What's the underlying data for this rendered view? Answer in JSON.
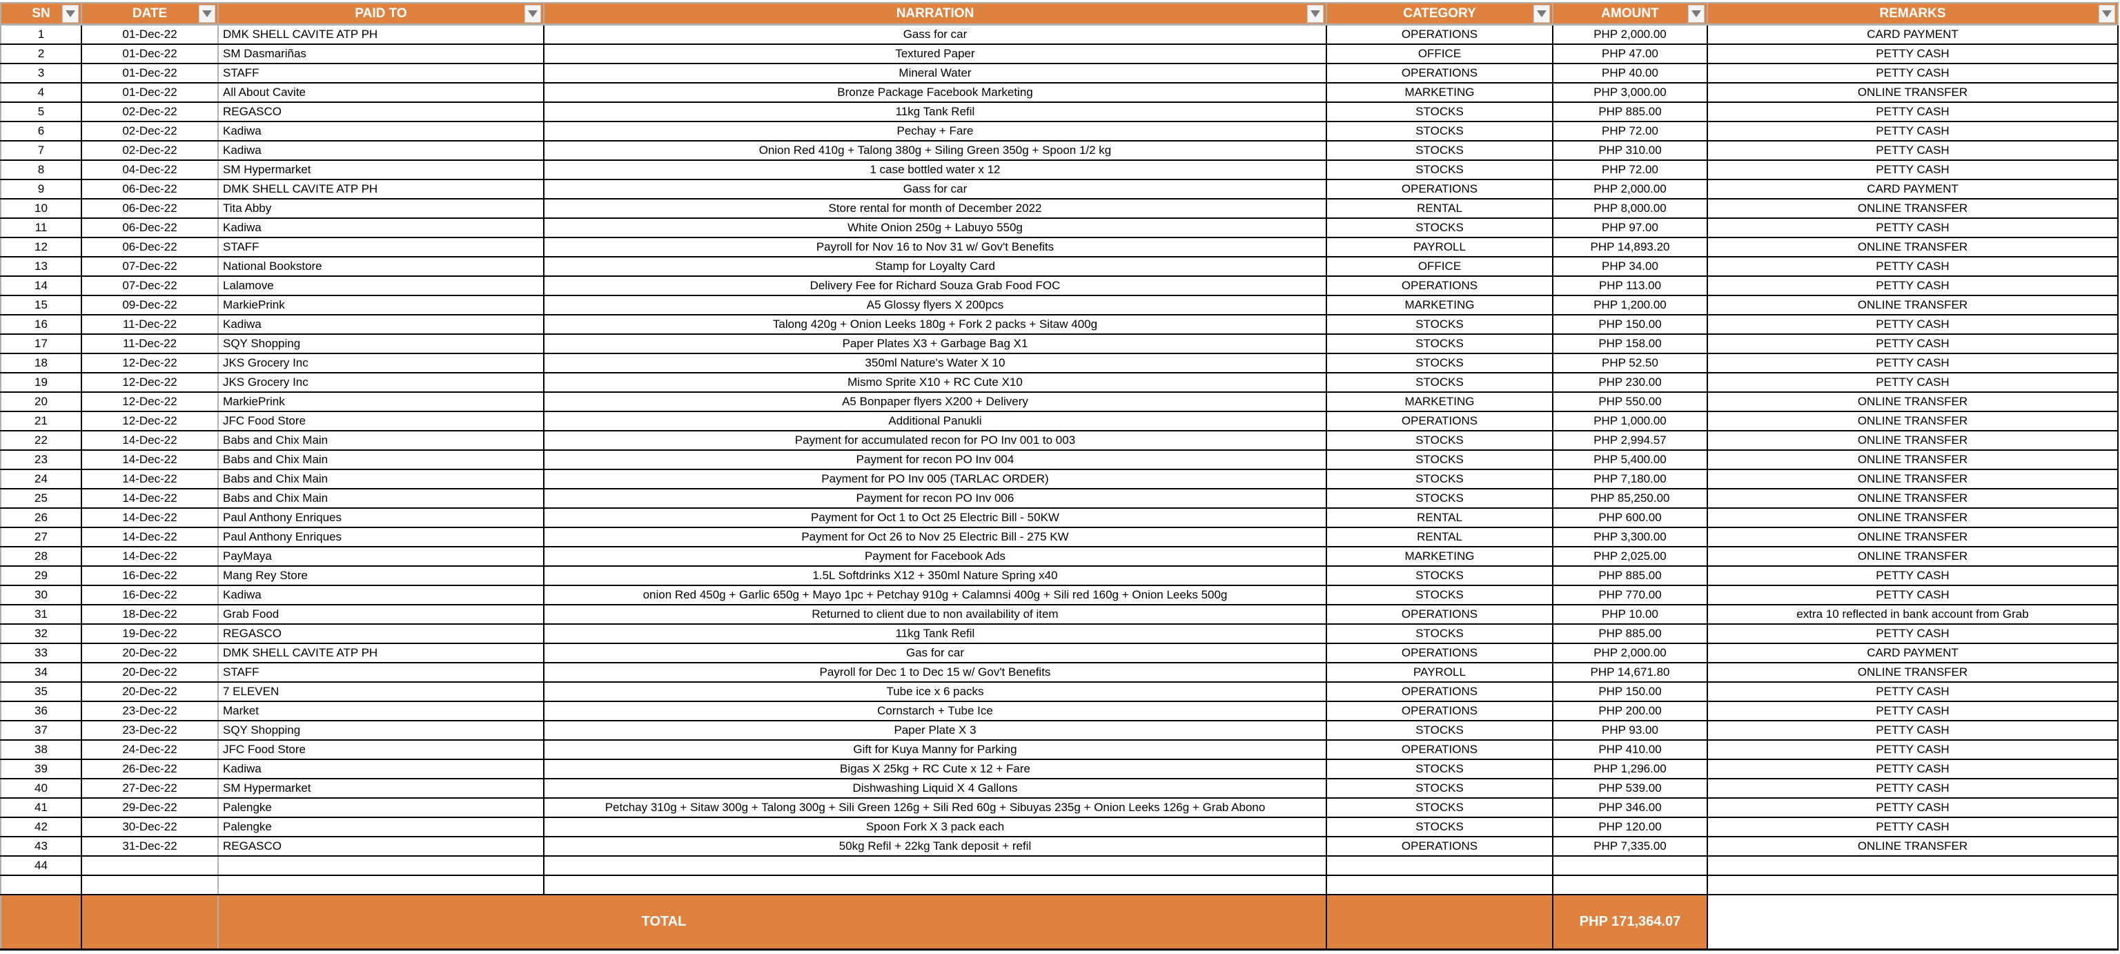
{
  "colors": {
    "header_bg": "#E0823F",
    "header_text": "#FFFFFF"
  },
  "headers": [
    "SN",
    "DATE",
    "PAID TO",
    "NARRATION",
    "CATEGORY",
    "AMOUNT",
    "REMARKS"
  ],
  "header_icon": "dropdown-filter-icon",
  "rows": [
    {
      "sn": "1",
      "date": "01-Dec-22",
      "paid_to": "DMK SHELL CAVITE ATP PH",
      "narration": "Gass for car",
      "category": "OPERATIONS",
      "amount": "PHP 2,000.00",
      "remarks": "CARD PAYMENT"
    },
    {
      "sn": "2",
      "date": "01-Dec-22",
      "paid_to": "SM Dasmariñas",
      "narration": "Textured Paper",
      "category": "OFFICE",
      "amount": "PHP 47.00",
      "remarks": "PETTY CASH"
    },
    {
      "sn": "3",
      "date": "01-Dec-22",
      "paid_to": "STAFF",
      "narration": "Mineral Water",
      "category": "OPERATIONS",
      "amount": "PHP 40.00",
      "remarks": "PETTY CASH"
    },
    {
      "sn": "4",
      "date": "01-Dec-22",
      "paid_to": "All About Cavite",
      "narration": "Bronze Package Facebook Marketing",
      "category": "MARKETING",
      "amount": "PHP 3,000.00",
      "remarks": "ONLINE TRANSFER"
    },
    {
      "sn": "5",
      "date": "02-Dec-22",
      "paid_to": "REGASCO",
      "narration": "11kg Tank Refil",
      "category": "STOCKS",
      "amount": "PHP 885.00",
      "remarks": "PETTY CASH"
    },
    {
      "sn": "6",
      "date": "02-Dec-22",
      "paid_to": "Kadiwa",
      "narration": "Pechay + Fare",
      "category": "STOCKS",
      "amount": "PHP 72.00",
      "remarks": "PETTY CASH"
    },
    {
      "sn": "7",
      "date": "02-Dec-22",
      "paid_to": "Kadiwa",
      "narration": "Onion Red 410g + Talong 380g + Siling Green 350g + Spoon 1/2 kg",
      "category": "STOCKS",
      "amount": "PHP 310.00",
      "remarks": "PETTY CASH"
    },
    {
      "sn": "8",
      "date": "04-Dec-22",
      "paid_to": "SM Hypermarket",
      "narration": "1 case bottled water x 12",
      "category": "STOCKS",
      "amount": "PHP 72.00",
      "remarks": "PETTY CASH"
    },
    {
      "sn": "9",
      "date": "06-Dec-22",
      "paid_to": "DMK SHELL CAVITE ATP PH",
      "narration": "Gass for car",
      "category": "OPERATIONS",
      "amount": "PHP 2,000.00",
      "remarks": "CARD PAYMENT"
    },
    {
      "sn": "10",
      "date": "06-Dec-22",
      "paid_to": "Tita Abby",
      "narration": "Store rental for month of December 2022",
      "category": "RENTAL",
      "amount": "PHP 8,000.00",
      "remarks": "ONLINE TRANSFER"
    },
    {
      "sn": "11",
      "date": "06-Dec-22",
      "paid_to": "Kadiwa",
      "narration": "White Onion 250g + Labuyo 550g",
      "category": "STOCKS",
      "amount": "PHP 97.00",
      "remarks": "PETTY CASH"
    },
    {
      "sn": "12",
      "date": "06-Dec-22",
      "paid_to": "STAFF",
      "narration": "Payroll for Nov 16 to Nov 31 w/ Gov't Benefits",
      "category": "PAYROLL",
      "amount": "PHP 14,893.20",
      "remarks": "ONLINE TRANSFER"
    },
    {
      "sn": "13",
      "date": "07-Dec-22",
      "paid_to": "National Bookstore",
      "narration": "Stamp for Loyalty Card",
      "category": "OFFICE",
      "amount": "PHP 34.00",
      "remarks": "PETTY CASH"
    },
    {
      "sn": "14",
      "date": "07-Dec-22",
      "paid_to": "Lalamove",
      "narration": "Delivery Fee for Richard Souza Grab Food FOC",
      "category": "OPERATIONS",
      "amount": "PHP 113.00",
      "remarks": "PETTY CASH"
    },
    {
      "sn": "15",
      "date": "09-Dec-22",
      "paid_to": "MarkiePrink",
      "narration": "A5 Glossy flyers X 200pcs",
      "category": "MARKETING",
      "amount": "PHP 1,200.00",
      "remarks": "ONLINE TRANSFER"
    },
    {
      "sn": "16",
      "date": "11-Dec-22",
      "paid_to": "Kadiwa",
      "narration": "Talong 420g + Onion Leeks 180g + Fork 2 packs + Sitaw 400g",
      "category": "STOCKS",
      "amount": "PHP 150.00",
      "remarks": "PETTY CASH"
    },
    {
      "sn": "17",
      "date": "11-Dec-22",
      "paid_to": "SQY Shopping",
      "narration": "Paper Plates X3 + Garbage Bag X1",
      "category": "STOCKS",
      "amount": "PHP 158.00",
      "remarks": "PETTY CASH"
    },
    {
      "sn": "18",
      "date": "12-Dec-22",
      "paid_to": "JKS Grocery Inc",
      "narration": "350ml Nature's Water X 10",
      "category": "STOCKS",
      "amount": "PHP 52.50",
      "remarks": "PETTY CASH"
    },
    {
      "sn": "19",
      "date": "12-Dec-22",
      "paid_to": "JKS Grocery Inc",
      "narration": "Mismo Sprite X10 + RC Cute X10",
      "category": "STOCKS",
      "amount": "PHP 230.00",
      "remarks": "PETTY CASH"
    },
    {
      "sn": "20",
      "date": "12-Dec-22",
      "paid_to": "MarkiePrink",
      "narration": "A5 Bonpaper flyers X200 + Delivery",
      "category": "MARKETING",
      "amount": "PHP 550.00",
      "remarks": "ONLINE TRANSFER"
    },
    {
      "sn": "21",
      "date": "12-Dec-22",
      "paid_to": "JFC Food Store",
      "narration": "Additional Panukli",
      "category": "OPERATIONS",
      "amount": "PHP 1,000.00",
      "remarks": "ONLINE TRANSFER"
    },
    {
      "sn": "22",
      "date": "14-Dec-22",
      "paid_to": "Babs and Chix Main",
      "narration": "Payment for accumulated recon for PO Inv 001 to 003",
      "category": "STOCKS",
      "amount": "PHP 2,994.57",
      "remarks": "ONLINE TRANSFER"
    },
    {
      "sn": "23",
      "date": "14-Dec-22",
      "paid_to": "Babs and Chix Main",
      "narration": "Payment for recon PO Inv 004",
      "category": "STOCKS",
      "amount": "PHP 5,400.00",
      "remarks": "ONLINE TRANSFER"
    },
    {
      "sn": "24",
      "date": "14-Dec-22",
      "paid_to": "Babs and Chix Main",
      "narration": "Payment for PO Inv 005 (TARLAC ORDER)",
      "category": "STOCKS",
      "amount": "PHP 7,180.00",
      "remarks": "ONLINE TRANSFER"
    },
    {
      "sn": "25",
      "date": "14-Dec-22",
      "paid_to": "Babs and Chix Main",
      "narration": "Payment for recon PO Inv 006",
      "category": "STOCKS",
      "amount": "PHP 85,250.00",
      "remarks": "ONLINE TRANSFER"
    },
    {
      "sn": "26",
      "date": "14-Dec-22",
      "paid_to": "Paul Anthony Enriques",
      "narration": "Payment for Oct 1 to Oct 25 Electric Bill - 50KW",
      "category": "RENTAL",
      "amount": "PHP 600.00",
      "remarks": "ONLINE TRANSFER"
    },
    {
      "sn": "27",
      "date": "14-Dec-22",
      "paid_to": "Paul Anthony Enriques",
      "narration": "Payment for Oct 26 to Nov 25 Electric Bill - 275 KW",
      "category": "RENTAL",
      "amount": "PHP 3,300.00",
      "remarks": "ONLINE TRANSFER"
    },
    {
      "sn": "28",
      "date": "14-Dec-22",
      "paid_to": "PayMaya",
      "narration": "Payment for Facebook Ads",
      "category": "MARKETING",
      "amount": "PHP 2,025.00",
      "remarks": "ONLINE TRANSFER"
    },
    {
      "sn": "29",
      "date": "16-Dec-22",
      "paid_to": "Mang Rey Store",
      "narration": "1.5L Softdrinks X12 + 350ml Nature Spring x40",
      "category": "STOCKS",
      "amount": "PHP 885.00",
      "remarks": "PETTY CASH"
    },
    {
      "sn": "30",
      "date": "16-Dec-22",
      "paid_to": "Kadiwa",
      "narration": "onion Red 450g + Garlic 650g + Mayo 1pc + Petchay 910g + Calamnsi 400g + Sili red 160g + Onion Leeks 500g",
      "category": "STOCKS",
      "amount": "PHP 770.00",
      "remarks": "PETTY CASH"
    },
    {
      "sn": "31",
      "date": "18-Dec-22",
      "paid_to": "Grab Food",
      "narration": "Returned to client due to non availability of item",
      "category": "OPERATIONS",
      "amount": "PHP 10.00",
      "remarks": "extra 10 reflected in bank account from Grab"
    },
    {
      "sn": "32",
      "date": "19-Dec-22",
      "paid_to": "REGASCO",
      "narration": "11kg Tank Refil",
      "category": "STOCKS",
      "amount": "PHP 885.00",
      "remarks": "PETTY CASH"
    },
    {
      "sn": "33",
      "date": "20-Dec-22",
      "paid_to": "DMK SHELL CAVITE ATP PH",
      "narration": "Gas for car",
      "category": "OPERATIONS",
      "amount": "PHP 2,000.00",
      "remarks": "CARD PAYMENT"
    },
    {
      "sn": "34",
      "date": "20-Dec-22",
      "paid_to": "STAFF",
      "narration": "Payroll for Dec 1 to Dec 15  w/ Gov't Benefits",
      "category": "PAYROLL",
      "amount": "PHP 14,671.80",
      "remarks": "ONLINE TRANSFER"
    },
    {
      "sn": "35",
      "date": "20-Dec-22",
      "paid_to": "7 ELEVEN",
      "narration": "Tube ice x 6 packs",
      "category": "OPERATIONS",
      "amount": "PHP 150.00",
      "remarks": "PETTY CASH"
    },
    {
      "sn": "36",
      "date": "23-Dec-22",
      "paid_to": "Market",
      "narration": "Cornstarch + Tube Ice",
      "category": "OPERATIONS",
      "amount": "PHP 200.00",
      "remarks": "PETTY CASH"
    },
    {
      "sn": "37",
      "date": "23-Dec-22",
      "paid_to": "SQY Shopping",
      "narration": "Paper Plate X 3",
      "category": "STOCKS",
      "amount": "PHP 93.00",
      "remarks": "PETTY CASH"
    },
    {
      "sn": "38",
      "date": "24-Dec-22",
      "paid_to": "JFC Food Store",
      "narration": "Gift for Kuya Manny for Parking",
      "category": "OPERATIONS",
      "amount": "PHP 410.00",
      "remarks": "PETTY CASH"
    },
    {
      "sn": "39",
      "date": "26-Dec-22",
      "paid_to": "Kadiwa",
      "narration": "Bigas X 25kg + RC Cute x 12 + Fare",
      "category": "STOCKS",
      "amount": "PHP 1,296.00",
      "remarks": "PETTY CASH"
    },
    {
      "sn": "40",
      "date": "27-Dec-22",
      "paid_to": "SM Hypermarket",
      "narration": "Dishwashing Liquid X 4 Gallons",
      "category": "STOCKS",
      "amount": "PHP 539.00",
      "remarks": "PETTY CASH"
    },
    {
      "sn": "41",
      "date": "29-Dec-22",
      "paid_to": "Palengke",
      "narration": "Petchay 310g + Sitaw 300g + Talong 300g + Sili Green 126g + Sili Red 60g + Sibuyas 235g + Onion Leeks 126g + Grab Abono",
      "category": "STOCKS",
      "amount": "PHP 346.00",
      "remarks": "PETTY CASH"
    },
    {
      "sn": "42",
      "date": "30-Dec-22",
      "paid_to": "Palengke",
      "narration": "Spoon Fork X 3 pack each",
      "category": "STOCKS",
      "amount": "PHP 120.00",
      "remarks": "PETTY CASH"
    },
    {
      "sn": "43",
      "date": "31-Dec-22",
      "paid_to": "REGASCO",
      "narration": "50kg Refil + 22kg Tank deposit + refil",
      "category": "OPERATIONS",
      "amount": "PHP 7,335.00",
      "remarks": "ONLINE TRANSFER"
    },
    {
      "sn": "44",
      "date": "",
      "paid_to": "",
      "narration": "",
      "category": "",
      "amount": "",
      "remarks": ""
    },
    {
      "sn": "",
      "date": "",
      "paid_to": "",
      "narration": "",
      "category": "",
      "amount": "",
      "remarks": ""
    }
  ],
  "total": {
    "label": "TOTAL",
    "amount": "PHP 171,364.07"
  }
}
